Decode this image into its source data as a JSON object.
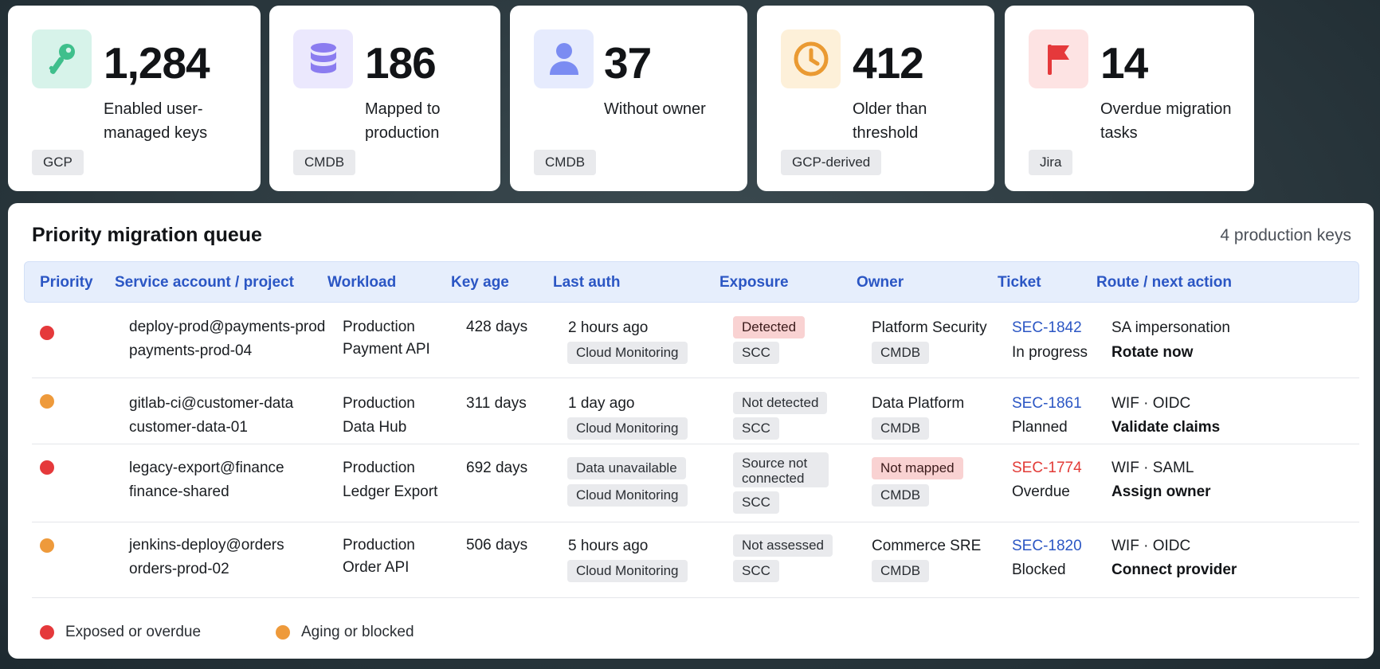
{
  "colors": {
    "red": "#e5393b",
    "orange": "#ee9a3b",
    "link": "#2b56c4",
    "overdue": "#e23b37"
  },
  "cards": [
    {
      "value": "1,284",
      "label": "Enabled user-managed keys",
      "tag": "GCP",
      "icon": "key-icon"
    },
    {
      "value": "186",
      "label": "Mapped to production",
      "tag": "CMDB",
      "icon": "database-icon"
    },
    {
      "value": "37",
      "label": "Without owner",
      "tag": "CMDB",
      "icon": "user-icon"
    },
    {
      "value": "412",
      "label": "Older than threshold",
      "tag": "GCP-derived",
      "icon": "clock-icon"
    },
    {
      "value": "14",
      "label": "Overdue migration tasks",
      "tag": "Jira",
      "icon": "flag-icon"
    }
  ],
  "queue": {
    "title": "Priority migration queue",
    "count": "4 production keys",
    "columns": [
      "Priority",
      "Service account / project",
      "Workload",
      "Key age",
      "Last auth",
      "Exposure",
      "Owner",
      "Ticket",
      "Route / next action"
    ],
    "rows": [
      {
        "priority": "red",
        "account": "deploy-prod@payments-prod",
        "project": "payments-prod-04",
        "workload1": "Production",
        "workload2": "Payment API",
        "age": "428 days",
        "auth": "2 hours ago",
        "auth_source": "Cloud Monitoring",
        "exposure": "Detected",
        "exposure_source": "SCC",
        "owner": "Platform Security",
        "owner_source": "CMDB",
        "ticket": "SEC-1842",
        "ticket_status": "In progress",
        "route": "SA impersonation",
        "action": "Rotate now"
      },
      {
        "priority": "orange",
        "account": "gitlab-ci@customer-data",
        "project": "customer-data-01",
        "workload1": "Production",
        "workload2": "Data Hub",
        "age": "311 days",
        "auth": "1 day ago",
        "auth_source": "Cloud Monitoring",
        "exposure": "Not detected",
        "exposure_source": "SCC",
        "owner": "Data Platform",
        "owner_source": "CMDB",
        "ticket": "SEC-1861",
        "ticket_status": "Planned",
        "route": "WIF · OIDC",
        "action": "Validate claims"
      },
      {
        "priority": "red",
        "account": "legacy-export@finance",
        "project": "finance-shared",
        "workload1": "Production",
        "workload2": "Ledger Export",
        "age": "692 days",
        "auth": "Data unavailable",
        "auth_source": "Cloud Monitoring",
        "exposure": "Source not connected",
        "exposure_source": "SCC",
        "owner": "Not mapped",
        "owner_source": "CMDB",
        "ticket": "SEC-1774",
        "ticket_status": "Overdue",
        "route": "WIF · SAML",
        "action": "Assign owner"
      },
      {
        "priority": "orange",
        "account": "jenkins-deploy@orders",
        "project": "orders-prod-02",
        "workload1": "Production",
        "workload2": "Order API",
        "age": "506 days",
        "auth": "5 hours ago",
        "auth_source": "Cloud Monitoring",
        "exposure": "Not assessed",
        "exposure_source": "SCC",
        "owner": "Commerce SRE",
        "owner_source": "CMDB",
        "ticket": "SEC-1820",
        "ticket_status": "Blocked",
        "route": "WIF · OIDC",
        "action": "Connect provider"
      }
    ],
    "legend": [
      {
        "color": "red",
        "label": "Exposed or overdue"
      },
      {
        "color": "orange",
        "label": "Aging or blocked"
      }
    ]
  }
}
